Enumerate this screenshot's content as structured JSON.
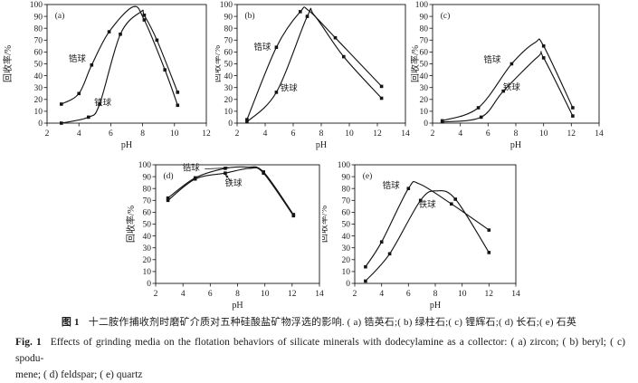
{
  "page": {
    "background": "#ffffff",
    "text_color": "#1c1c1c",
    "curve_color": "#141414"
  },
  "figure": {
    "caption_zh": {
      "label": "图 1",
      "text": "十二胺作捕收剂时磨矿介质对五种硅酸盐矿物浮选的影响. ( a) 锆英石;( b) 绿柱石;( c) 锂辉石;( d) 长石;( e) 石英"
    },
    "caption_en": {
      "label": "Fig. 1",
      "line1": "Effects of grinding media on the flotation behaviors of silicate minerals with dodecylamine as a collector: ( a)  zircon; ( b)  beryl; ( c)  spodu-",
      "line2": "mene; ( d)  feldspar; ( e)  quartz"
    }
  },
  "chart_data": [
    {
      "id": "a",
      "tag": "(a)",
      "type": "line",
      "mineral_zh": "锆英石",
      "mineral_en": "zircon",
      "xlabel": "pH",
      "ylabel": "回收率/%",
      "xlim": [
        2,
        12
      ],
      "xticks": [
        2,
        4,
        6,
        8,
        10,
        12
      ],
      "ylim": [
        0,
        100
      ],
      "ytick_step": 10,
      "grid": false,
      "series": [
        {
          "name": "锆球",
          "label_pos": [
            3.9,
            52
          ],
          "points": [
            [
              2.9,
              16,
              1
            ],
            [
              4.0,
              25,
              1
            ],
            [
              4.8,
              49,
              1
            ],
            [
              5.9,
              77,
              1
            ],
            [
              7.4,
              98,
              0
            ],
            [
              8.1,
              87,
              1
            ],
            [
              9.4,
              45,
              1
            ],
            [
              10.2,
              15,
              1
            ]
          ]
        },
        {
          "name": "铁球",
          "label_pos": [
            5.5,
            15
          ],
          "points": [
            [
              2.9,
              0,
              1
            ],
            [
              4.6,
              5,
              1
            ],
            [
              5.3,
              16,
              1
            ],
            [
              6.6,
              75,
              1
            ],
            [
              7.9,
              94,
              0
            ],
            [
              8.1,
              91,
              1
            ],
            [
              8.9,
              70,
              1
            ],
            [
              10.2,
              26,
              1
            ]
          ]
        }
      ]
    },
    {
      "id": "b",
      "tag": "(b)",
      "type": "line",
      "mineral_zh": "绿柱石",
      "mineral_en": "beryl",
      "xlabel": "pH",
      "ylabel": "回收率/%",
      "xlim": [
        2,
        14
      ],
      "xticks": [
        2,
        4,
        6,
        8,
        10,
        12,
        14
      ],
      "ylim": [
        0,
        100
      ],
      "ytick_step": 10,
      "grid": false,
      "series": [
        {
          "name": "锆球",
          "label_pos": [
            3.8,
            62
          ],
          "points": [
            [
              2.7,
              3,
              1
            ],
            [
              4.8,
              64,
              1
            ],
            [
              6.5,
              94,
              1
            ],
            [
              7.1,
              95,
              0
            ],
            [
              9.0,
              72,
              1
            ],
            [
              12.3,
              31,
              1
            ]
          ]
        },
        {
          "name": "铁球",
          "label_pos": [
            5.7,
            27
          ],
          "points": [
            [
              2.7,
              1,
              1
            ],
            [
              4.8,
              26,
              1
            ],
            [
              7.0,
              90,
              1
            ],
            [
              7.5,
              91,
              0
            ],
            [
              9.6,
              56,
              1
            ],
            [
              12.3,
              21,
              1
            ]
          ]
        }
      ]
    },
    {
      "id": "c",
      "tag": "(c)",
      "type": "line",
      "mineral_zh": "锂辉石",
      "mineral_en": "spodumene",
      "xlabel": "pH",
      "ylabel": "回收率/%",
      "xlim": [
        2,
        14
      ],
      "xticks": [
        2,
        4,
        6,
        8,
        10,
        12,
        14
      ],
      "ylim": [
        0,
        100
      ],
      "ytick_step": 10,
      "grid": false,
      "series": [
        {
          "name": "锆球",
          "label_pos": [
            6.3,
            51
          ],
          "points": [
            [
              2.7,
              2,
              1
            ],
            [
              5.3,
              13,
              1
            ],
            [
              7.7,
              50,
              1
            ],
            [
              9.4,
              68,
              0
            ],
            [
              10.0,
              65,
              1
            ],
            [
              12.1,
              13,
              1
            ]
          ]
        },
        {
          "name": "铁球",
          "label_pos": [
            7.7,
            28
          ],
          "points": [
            [
              2.7,
              1,
              1
            ],
            [
              5.5,
              5,
              1
            ],
            [
              7.1,
              27,
              1
            ],
            [
              9.6,
              56,
              0
            ],
            [
              10.0,
              55,
              1
            ],
            [
              12.1,
              6,
              1
            ]
          ]
        }
      ]
    },
    {
      "id": "d",
      "tag": "(d)",
      "type": "line",
      "mineral_zh": "长石",
      "mineral_en": "feldspar",
      "xlabel": "pH",
      "ylabel": "回收率/%",
      "xlim": [
        2,
        14
      ],
      "xticks": [
        2,
        4,
        6,
        8,
        10,
        12,
        14
      ],
      "ylim": [
        0,
        100
      ],
      "ytick_step": 10,
      "grid": false,
      "series": [
        {
          "name": "锆球",
          "label_pos": [
            4.6,
            95
          ],
          "arrow": {
            "from": [
              5.6,
              96.5
            ],
            "to": [
              7.4,
              97.5
            ]
          },
          "points": [
            [
              2.9,
              72,
              1
            ],
            [
              4.9,
              89,
              1
            ],
            [
              7.1,
              97,
              1
            ],
            [
              8.7,
              98,
              0
            ],
            [
              9.9,
              94,
              1
            ],
            [
              12.1,
              58,
              1
            ]
          ]
        },
        {
          "name": "铁球",
          "label_pos": [
            7.7,
            82
          ],
          "arrow": {
            "from": [
              7.5,
              86
            ],
            "to": [
              7.1,
              92
            ]
          },
          "points": [
            [
              2.9,
              70,
              1
            ],
            [
              4.9,
              88,
              1
            ],
            [
              7.1,
              93,
              1
            ],
            [
              8.9,
              97,
              0
            ],
            [
              9.9,
              93,
              1
            ],
            [
              12.1,
              57,
              1
            ]
          ]
        }
      ]
    },
    {
      "id": "e",
      "tag": "(e)",
      "type": "line",
      "mineral_zh": "石英",
      "mineral_en": "quartz",
      "xlabel": "pH",
      "ylabel": "回收率/%",
      "xlim": [
        2,
        14
      ],
      "xticks": [
        2,
        4,
        6,
        8,
        10,
        12,
        14
      ],
      "ylim": [
        0,
        100
      ],
      "ytick_step": 10,
      "grid": false,
      "series": [
        {
          "name": "锆球",
          "label_pos": [
            4.7,
            80
          ],
          "points": [
            [
              2.8,
              14,
              1
            ],
            [
              4.0,
              35,
              1
            ],
            [
              6.0,
              80,
              1
            ],
            [
              6.8,
              84,
              0
            ],
            [
              9.2,
              67,
              1
            ],
            [
              12.0,
              45,
              1
            ]
          ]
        },
        {
          "name": "铁球",
          "label_pos": [
            7.4,
            64
          ],
          "points": [
            [
              2.8,
              2,
              1
            ],
            [
              4.6,
              25,
              1
            ],
            [
              6.9,
              70,
              1
            ],
            [
              8.1,
              78,
              0
            ],
            [
              9.5,
              71,
              1
            ],
            [
              12.0,
              26,
              1
            ]
          ]
        }
      ]
    }
  ]
}
